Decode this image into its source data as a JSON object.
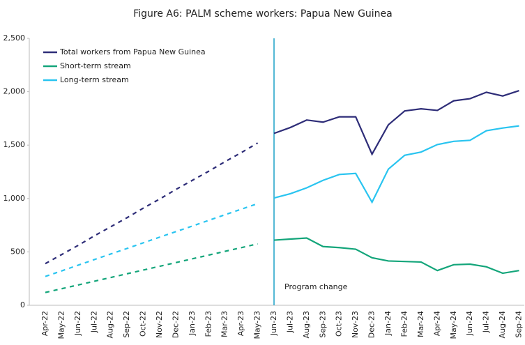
{
  "chart_data": {
    "type": "line",
    "title": "Figure A6: PALM scheme workers: Papua New Guinea",
    "categories": [
      "Apr-22",
      "May-22",
      "Jun-22",
      "Jul-22",
      "Aug-22",
      "Sep-22",
      "Oct-22",
      "Nov-22",
      "Dec-22",
      "Jan-23",
      "Feb-23",
      "Mar-23",
      "Apr-23",
      "May-23",
      "Jun-23",
      "Jul-23",
      "Aug-23",
      "Sep-23",
      "Oct-23",
      "Nov-23",
      "Dec-23",
      "Jan-24",
      "Feb-24",
      "Mar-24",
      "Apr-24",
      "May-24",
      "Jun-24",
      "Jul-24",
      "Aug-24",
      "Sep-24"
    ],
    "series": [
      {
        "name": "Total workers from Papua New Guinea",
        "color": "#2e2d78",
        "values": [
          390,
          475,
          560,
          650,
          735,
          820,
          910,
          995,
          1085,
          1170,
          1255,
          1345,
          1430,
          1520,
          1610,
          1665,
          1735,
          1715,
          1765,
          1765,
          1415,
          1690,
          1820,
          1840,
          1825,
          1915,
          1935,
          1995,
          1960,
          2010
        ]
      },
      {
        "name": "Short-term stream",
        "color": "#13a57a",
        "values": [
          120,
          155,
          190,
          225,
          260,
          295,
          330,
          365,
          400,
          435,
          470,
          505,
          540,
          575,
          610,
          620,
          630,
          550,
          540,
          525,
          445,
          415,
          410,
          405,
          325,
          380,
          385,
          360,
          300,
          325
        ]
      },
      {
        "name": "Long-term stream",
        "color": "#29c4f0",
        "values": [
          270,
          322,
          375,
          428,
          480,
          532,
          585,
          638,
          690,
          742,
          795,
          848,
          900,
          952,
          1005,
          1045,
          1100,
          1170,
          1225,
          1235,
          965,
          1275,
          1405,
          1435,
          1505,
          1535,
          1545,
          1635,
          1660,
          1680
        ]
      }
    ],
    "ylim": [
      0,
      2500
    ],
    "yticks": [
      0,
      500,
      {
        "value": 1000,
        "label": "1,000"
      },
      {
        "value": 1500,
        "label": "1,500"
      },
      {
        "value": 2000,
        "label": "2,000"
      },
      {
        "value": 2500,
        "label": "2,500"
      }
    ],
    "grid": false,
    "legend": "top-left",
    "annotation": {
      "text": "Program change",
      "category": "Jun-23",
      "color": "#1aa0c8"
    }
  }
}
